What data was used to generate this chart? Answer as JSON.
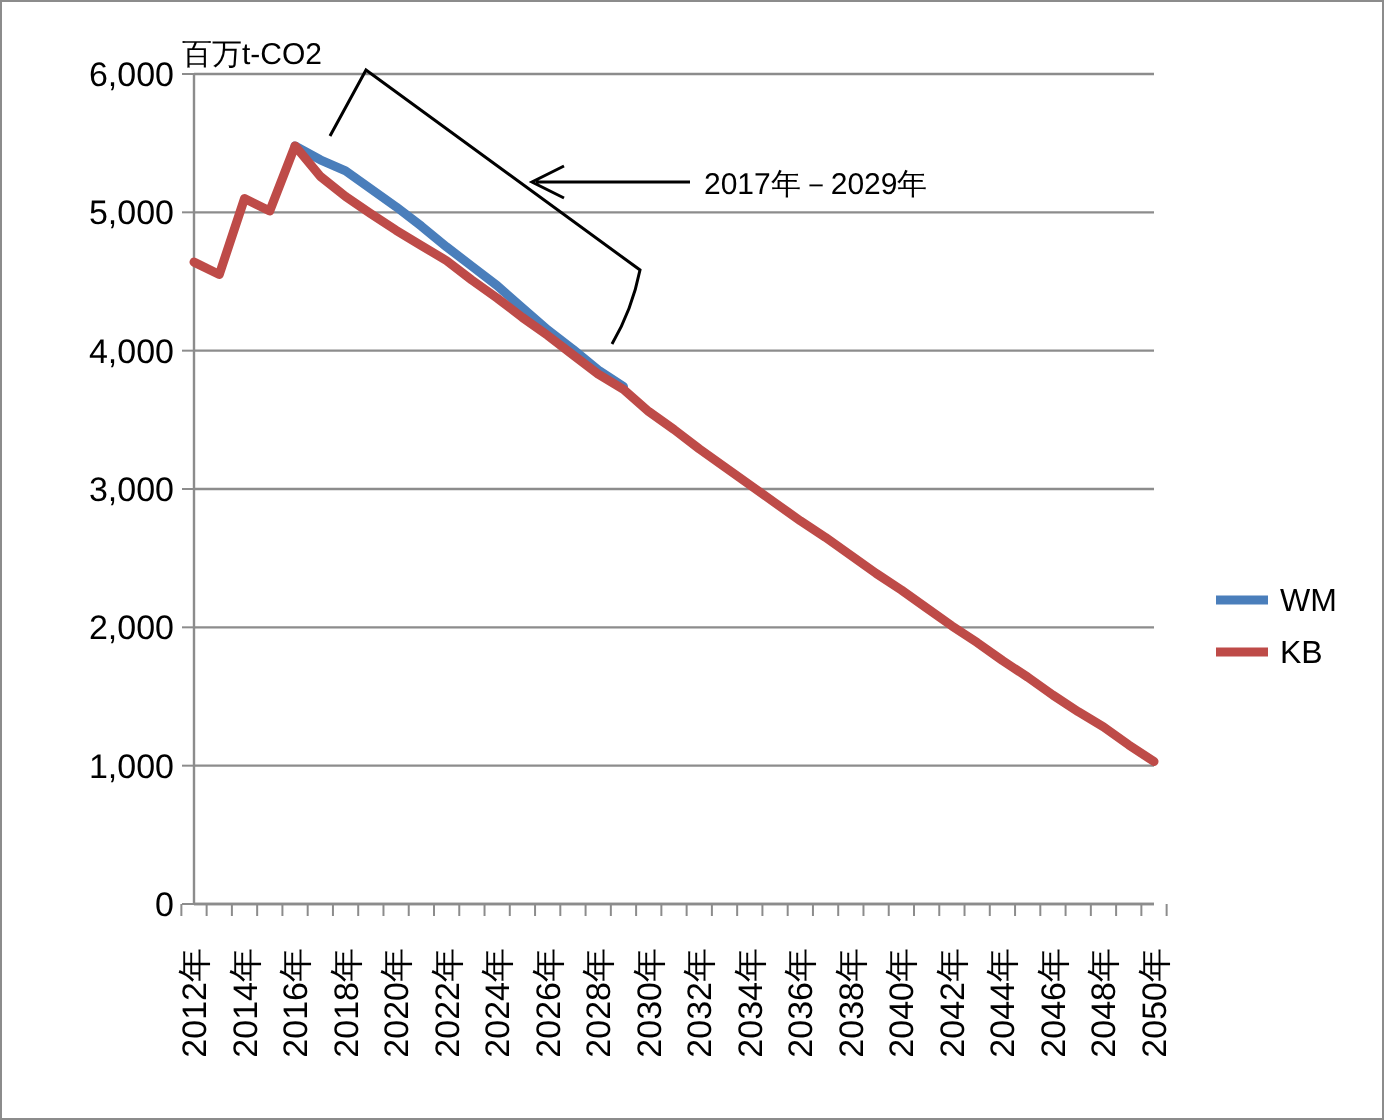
{
  "chart_data": {
    "type": "line",
    "ylabel": "百万t-CO2",
    "categories": [
      "2012年",
      null,
      "2014年",
      null,
      "2016年",
      null,
      "2018年",
      null,
      "2020年",
      null,
      "2022年",
      null,
      "2024年",
      null,
      "2026年",
      null,
      "2028年",
      null,
      "2030年",
      null,
      "2032年",
      null,
      "2034年",
      null,
      "2036年",
      null,
      "2038年",
      null,
      "2040年",
      null,
      "2042年",
      null,
      "2044年",
      null,
      "2046年",
      null,
      "2048年",
      null,
      "2050年"
    ],
    "series": [
      {
        "name": "WM",
        "color": "#4a7ebb",
        "values": [
          null,
          null,
          null,
          null,
          5480,
          5380,
          5300,
          5170,
          5040,
          4900,
          4750,
          4610,
          4470,
          4310,
          4150,
          4010,
          3860,
          3740,
          null,
          null,
          null,
          null,
          null,
          null,
          null,
          null,
          null,
          null,
          null,
          null,
          null,
          null,
          null,
          null,
          null,
          null,
          null,
          null,
          null
        ]
      },
      {
        "name": "KB",
        "color": "#be4b48",
        "values": [
          4640,
          4550,
          5100,
          5010,
          5480,
          5260,
          5115,
          4990,
          4870,
          4760,
          4650,
          4510,
          4380,
          4240,
          4110,
          3970,
          3830,
          3720,
          3560,
          3430,
          3290,
          3160,
          3030,
          2900,
          2770,
          2650,
          2520,
          2390,
          2270,
          2140,
          2010,
          1890,
          1760,
          1640,
          1510,
          1390,
          1280,
          1150,
          1030
        ]
      }
    ],
    "ylim": [
      0,
      6000
    ],
    "yticks": [
      0,
      {
        "value": 1000,
        "label": "1,000"
      },
      {
        "value": 2000,
        "label": "2,000"
      },
      {
        "value": 3000,
        "label": "3,000"
      },
      {
        "value": 4000,
        "label": "4,000"
      },
      {
        "value": 5000,
        "label": "5,000"
      },
      {
        "value": 6000,
        "label": "6,000"
      }
    ],
    "grid": "y",
    "legend": "right",
    "marker": "none",
    "line_style": "solid",
    "annotations": [
      "2017年－2029年"
    ]
  }
}
